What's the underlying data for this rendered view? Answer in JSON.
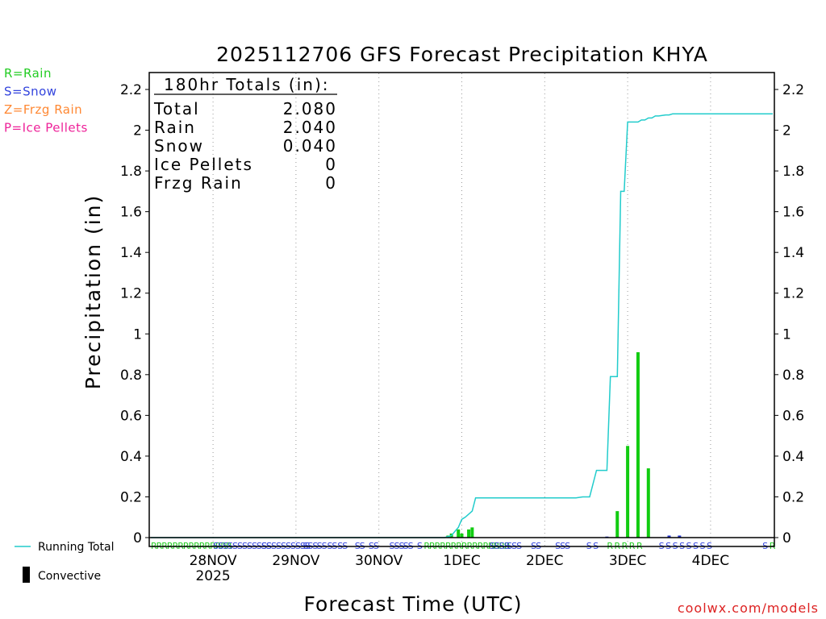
{
  "chart_data": {
    "type": "bar",
    "title": "2025112706 GFS Forecast Precipitation KHYA",
    "xlabel": "Forecast Time (UTC)",
    "ylabel": "Precipitation (in)",
    "ylim": [
      0,
      2.3
    ],
    "xlim_hours": [
      0,
      180
    ],
    "yticks": [
      "0",
      "0.2",
      "0.4",
      "0.6",
      "0.8",
      "1",
      "1.2",
      "1.4",
      "1.6",
      "1.8",
      "2",
      "2.2"
    ],
    "xticks": [
      {
        "label": "28NOV",
        "sublabel": "2025",
        "hour": 18
      },
      {
        "label": "29NOV",
        "sublabel": "",
        "hour": 42
      },
      {
        "label": "30NOV",
        "sublabel": "",
        "hour": 66
      },
      {
        "label": "1DEC",
        "sublabel": "",
        "hour": 90
      },
      {
        "label": "2DEC",
        "sublabel": "",
        "hour": 114
      },
      {
        "label": "3DEC",
        "sublabel": "",
        "hour": 138
      },
      {
        "label": "4DEC",
        "sublabel": "",
        "hour": 162
      }
    ],
    "totals": {
      "heading": "180hr Totals (in):",
      "rows": [
        {
          "label": "Total",
          "value": "2.080"
        },
        {
          "label": "Rain",
          "value": "2.040"
        },
        {
          "label": "Snow",
          "value": "0.040"
        },
        {
          "label": "Ice Pellets",
          "value": "0"
        },
        {
          "label": "Frzg Rain",
          "value": "0"
        }
      ]
    },
    "type_legend": [
      {
        "text": "R=Rain",
        "color": "#22cc22"
      },
      {
        "text": "S=Snow",
        "color": "#3344dd"
      },
      {
        "text": "Z=Frzg Rain",
        "color": "#ff8833"
      },
      {
        "text": "P=Ice Pellets",
        "color": "#ee2299"
      }
    ],
    "series_legend": {
      "running_total": "Running Total",
      "convective": "Convective"
    },
    "bars": [
      {
        "hour": 86,
        "value": 0.01,
        "kind": "rain"
      },
      {
        "hour": 87,
        "value": 0.02,
        "kind": "rain"
      },
      {
        "hour": 89,
        "value": 0.04,
        "kind": "rain"
      },
      {
        "hour": 90,
        "value": 0.02,
        "kind": "rain"
      },
      {
        "hour": 92,
        "value": 0.04,
        "kind": "rain"
      },
      {
        "hour": 93,
        "value": 0.05,
        "kind": "rain"
      },
      {
        "hour": 132,
        "value": 0.005,
        "kind": "snow"
      },
      {
        "hour": 135,
        "value": 0.13,
        "kind": "rain"
      },
      {
        "hour": 138,
        "value": 0.45,
        "kind": "rain"
      },
      {
        "hour": 141,
        "value": 0.91,
        "kind": "rain"
      },
      {
        "hour": 144,
        "value": 0.34,
        "kind": "rain"
      },
      {
        "hour": 150,
        "value": 0.01,
        "kind": "snow"
      },
      {
        "hour": 153,
        "value": 0.01,
        "kind": "snow"
      }
    ],
    "running_total": {
      "x": [
        0,
        85,
        87,
        88,
        89,
        90,
        91,
        93,
        94,
        123,
        125,
        126,
        127,
        129,
        130,
        132,
        133,
        135,
        136,
        137,
        138,
        139,
        140,
        141,
        142,
        143,
        144,
        145,
        146,
        147,
        149,
        150,
        151,
        153,
        180
      ],
      "y": [
        0,
        0,
        0.01,
        0.03,
        0.05,
        0.09,
        0.1,
        0.13,
        0.195,
        0.195,
        0.2,
        0.2,
        0.2,
        0.33,
        0.33,
        0.33,
        0.79,
        0.79,
        1.7,
        1.7,
        2.04,
        2.04,
        2.04,
        2.04,
        2.05,
        2.05,
        2.06,
        2.06,
        2.07,
        2.07,
        2.075,
        2.075,
        2.08,
        2.08,
        2.08
      ]
    },
    "type_markers": [
      {
        "hour": 0,
        "text": "RRRRRRRRRRRRRRR",
        "color": "#22cc22"
      },
      {
        "hour": 18,
        "text": "SSSSSSSSSSSS",
        "color": "#3344dd"
      },
      {
        "hour": 32,
        "text": "SSSSSSSSSS",
        "color": "#3344dd"
      },
      {
        "hour": 44,
        "text": "SSS",
        "color": "#3344dd"
      },
      {
        "hour": 48,
        "text": "SS",
        "color": "#3344dd"
      },
      {
        "hour": 51,
        "text": "SS",
        "color": "#3344dd"
      },
      {
        "hour": 54,
        "text": "SS",
        "color": "#3344dd"
      },
      {
        "hour": 59,
        "text": "SS",
        "color": "#3344dd"
      },
      {
        "hour": 63,
        "text": "SS",
        "color": "#3344dd"
      },
      {
        "hour": 69,
        "text": "SSS",
        "color": "#3344dd"
      },
      {
        "hour": 73,
        "text": "SS",
        "color": "#3344dd"
      },
      {
        "hour": 77,
        "text": "S",
        "color": "#3344dd"
      },
      {
        "hour": 79,
        "text": "RRRRRRRRRRRRRRRR",
        "color": "#22cc22"
      },
      {
        "hour": 98,
        "text": "SSSS",
        "color": "#3344dd"
      },
      {
        "hour": 103,
        "text": "SSS",
        "color": "#3344dd"
      },
      {
        "hour": 110,
        "text": "SS",
        "color": "#3344dd"
      },
      {
        "hour": 117,
        "text": "SSS",
        "color": "#3344dd"
      },
      {
        "hour": 126,
        "text": "S S",
        "color": "#3344dd"
      },
      {
        "hour": 132,
        "text": "R R R R R",
        "color": "#22cc22"
      },
      {
        "hour": 147,
        "text": "S S S S S S S S",
        "color": "#3344dd"
      },
      {
        "hour": 177,
        "text": "S",
        "color": "#3344dd"
      },
      {
        "hour": 179,
        "text": "R",
        "color": "#22cc22"
      }
    ],
    "colors": {
      "rain": "#11cc11",
      "snow": "#2233cc",
      "total": "#22cccc",
      "grid": "#999999"
    }
  },
  "credit": "coolwx.com/models"
}
